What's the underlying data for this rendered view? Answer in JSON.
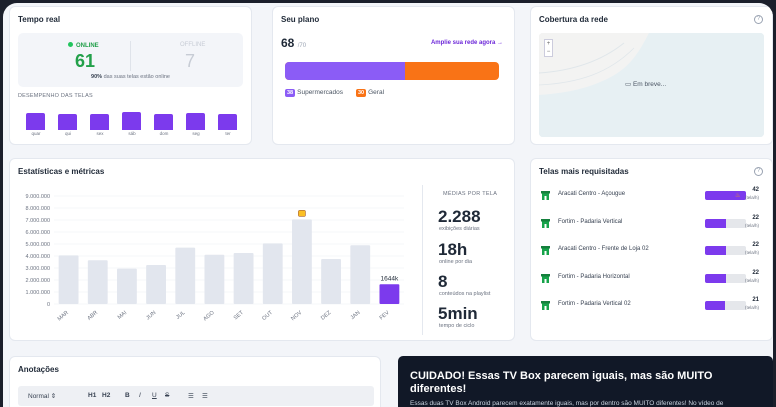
{
  "tempo_real": {
    "title": "Tempo real",
    "online_label": "ONLINE",
    "online_value": "61",
    "offline_label": "OFFLINE",
    "offline_value": "7",
    "note_pct": "90%",
    "note_text": "das suas telas estão online",
    "desempenho_label": "DESEMPENHO DAS TELAS",
    "days": [
      {
        "label": "quar",
        "level": 0.85
      },
      {
        "label": "qui",
        "level": 0.8
      },
      {
        "label": "sex",
        "level": 0.78
      },
      {
        "label": "sáb",
        "level": 0.9
      },
      {
        "label": "dom",
        "level": 0.82
      },
      {
        "label": "seg",
        "level": 0.86
      },
      {
        "label": "ter",
        "level": 0.8
      }
    ]
  },
  "plano": {
    "title": "Seu plano",
    "used": "68",
    "total": "/70",
    "upgrade_link": "Amplie sua rede agora →",
    "segments": [
      {
        "count": "38",
        "label": "Supermercados",
        "color": "#8b5cf6",
        "value": 38
      },
      {
        "count": "30",
        "label": "Geral",
        "color": "#f97316",
        "value": 30
      }
    ]
  },
  "cobertura": {
    "title": "Cobertura da rede",
    "help_icon": "?",
    "map_label": "Em breve...",
    "zoom_in": "+",
    "zoom_out": "−"
  },
  "stats": {
    "title": "Estatísticas e métricas",
    "media_title": "MÉDIAS POR TELA",
    "metrics": [
      {
        "value": "2.288",
        "label": "exibições diárias"
      },
      {
        "value": "18h",
        "label": "online por dia"
      },
      {
        "value": "8",
        "label": "conteúdos na playlist"
      },
      {
        "value": "5min",
        "label": "tempo de ciclo"
      }
    ]
  },
  "chart_data": {
    "type": "bar",
    "categories": [
      "MAR",
      "ABR",
      "MAI",
      "JUN",
      "JUL",
      "AGO",
      "SET",
      "OUT",
      "NOV",
      "DEZ",
      "JAN",
      "FEV"
    ],
    "values": [
      4050000,
      3650000,
      2950000,
      3250000,
      4700000,
      4100000,
      4250000,
      5050000,
      7050000,
      3750000,
      4900000,
      1644000
    ],
    "y_ticks": [
      "9.000.000",
      "8.000.000",
      "7.000.000",
      "6.000.000",
      "5.000.000",
      "4.000.000",
      "3.000.000",
      "2.000.000",
      "1.000.000",
      "0"
    ],
    "ylim": [
      0,
      9000000
    ],
    "highlight_index": 11,
    "highlight_label": "1644k",
    "highlight_color": "#7c3aed",
    "bar_color": "#e2e6ee",
    "annotation_index": 8,
    "grid": true
  },
  "telas": {
    "title": "Telas mais requisitadas",
    "help_icon": "?",
    "items": [
      {
        "name": "Aracati Centro - Açougue",
        "count": "42",
        "unit": "(tela/h)",
        "fraction": 1.0,
        "hot": true
      },
      {
        "name": "Fortim - Padaria Vertical",
        "count": "22",
        "unit": "(tela/h)",
        "fraction": 0.5,
        "hot": false
      },
      {
        "name": "Aracati Centro - Frente de Loja 02",
        "count": "22",
        "unit": "(tela/h)",
        "fraction": 0.5,
        "hot": false
      },
      {
        "name": "Fortim - Padaria Horizontal",
        "count": "22",
        "unit": "(tela/h)",
        "fraction": 0.5,
        "hot": false
      },
      {
        "name": "Fortim - Padaria Vertical 02",
        "count": "21",
        "unit": "(tela/h)",
        "fraction": 0.48,
        "hot": false
      }
    ]
  },
  "anotacoes": {
    "title": "Anotações",
    "format_select": "Normal",
    "tools": [
      "H1",
      "H2",
      "B",
      "I",
      "U",
      "S"
    ]
  },
  "banner": {
    "title": "CUIDADO! Essas TV Box parecem iguais, mas são MUITO diferentes!",
    "text": "Essas duas TV Box Android parecem exatamente iguais, mas por dentro são MUITO diferentes! No vídeo de"
  }
}
